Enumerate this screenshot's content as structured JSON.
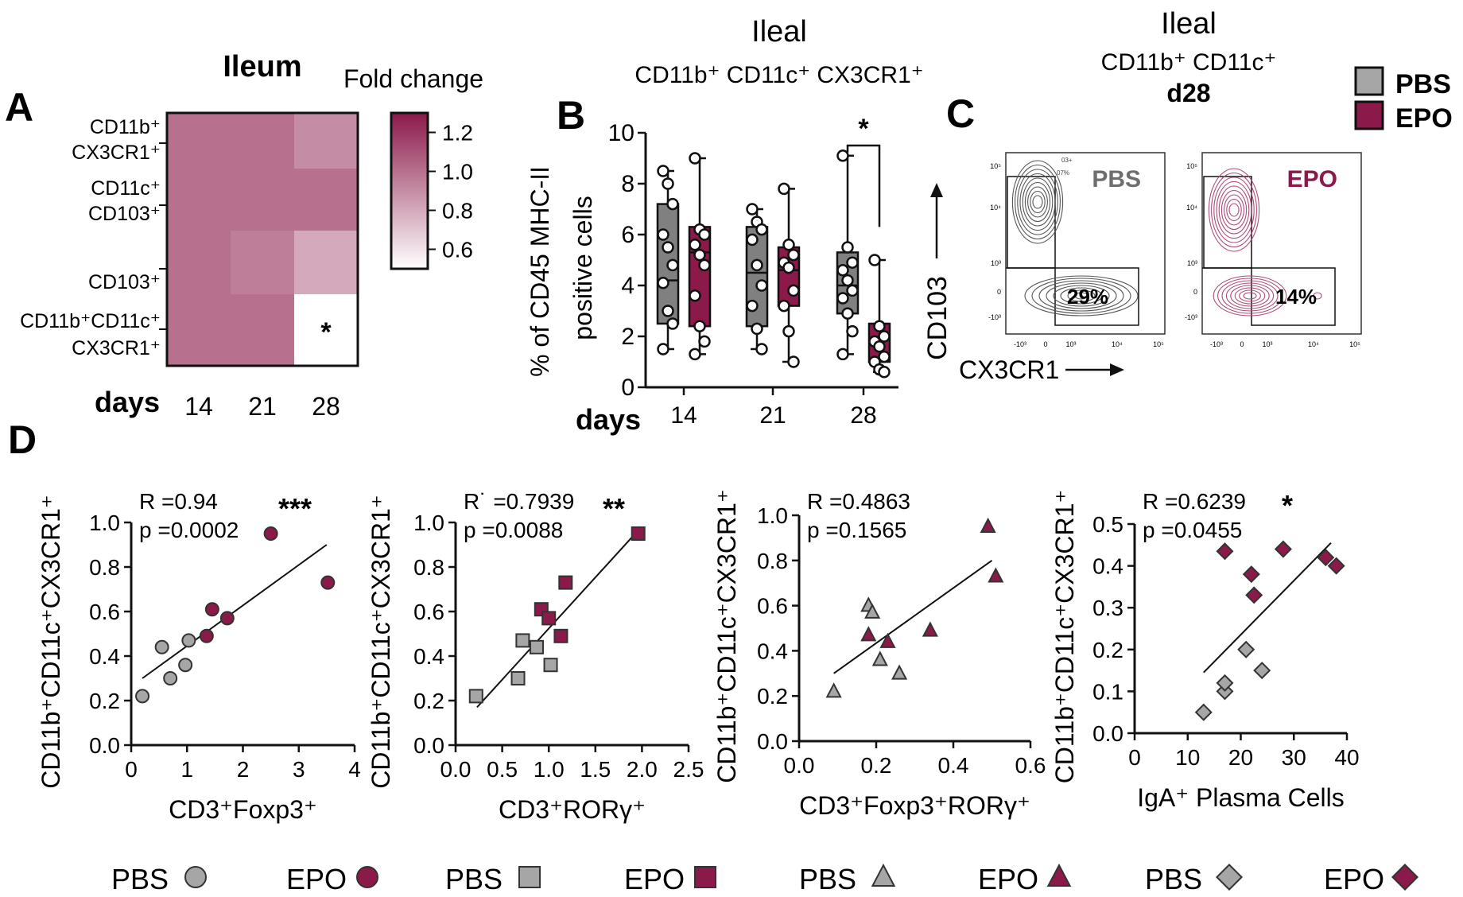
{
  "colors": {
    "pbs": "#a6a6a6",
    "epo": "#8b1a4a",
    "pbs_box": "#808080",
    "epo_box": "#8b1a4a",
    "heat_max": "#8b1a4a",
    "heat_min": "#ffffff",
    "flow_pbs": "#555555",
    "flow_epo": "#b04a7a",
    "axis": "#111111"
  },
  "legend_top": {
    "items": [
      {
        "label": "PBS",
        "color": "#a6a6a6"
      },
      {
        "label": "EPO",
        "color": "#8b1a4a"
      }
    ]
  },
  "panel_c": {
    "title_line1": "Ileal",
    "title_line2": "CD11b⁺ CD11c⁺",
    "title_line3": "d28",
    "y_label": "CD103",
    "x_label": "CX3CR1",
    "tick_labels": [
      "10⁵",
      "10⁴",
      "10³",
      "0",
      "-10³"
    ],
    "x_tick_labels": [
      "-10³",
      "0",
      "10³",
      "10⁴",
      "10⁵"
    ],
    "plots": [
      {
        "name": "PBS",
        "label_color": "#6e6e6e",
        "percent": "29%",
        "gate_text": "03+",
        "gate_text2": "07%"
      },
      {
        "name": "EPO",
        "label_color": "#8b1a4a",
        "percent": "14%"
      }
    ]
  },
  "panel_labels": {
    "a": "A",
    "b": "B",
    "c": "C",
    "d": "D"
  },
  "chart_data": [
    {
      "id": "A",
      "type": "heatmap",
      "title": "Ileum",
      "colorbar_title": "Fold change",
      "colorbar_ticks": [
        "1.2",
        "1.0",
        "0.8",
        "0.6"
      ],
      "colorbar_range": [
        0.5,
        1.3
      ],
      "rows": [
        "CD11b⁺ CX3CR1⁺",
        "CD11c⁺ CD103⁺",
        "CD103⁺",
        "CD11b⁺CD11c⁺ CX3CR1⁺"
      ],
      "columns": [
        "14",
        "21",
        "28"
      ],
      "xlabel": "days",
      "values": [
        [
          1.0,
          1.0,
          0.9
        ],
        [
          1.0,
          1.0,
          1.0
        ],
        [
          1.0,
          0.95,
          0.8
        ],
        [
          1.0,
          1.0,
          0.5
        ]
      ],
      "annotations": [
        {
          "row": 3,
          "col": 2,
          "text": "*"
        }
      ]
    },
    {
      "id": "B",
      "type": "box",
      "title": "Ileal",
      "subtitle": "CD11b⁺ CD11c⁺ CX3CR1⁺",
      "ylabel_line1": "% of CD45 MHC-II",
      "ylabel_line2": "positive cells",
      "xlabel": "days",
      "categories": [
        "14",
        "21",
        "28"
      ],
      "ylim": [
        0,
        10
      ],
      "yticks": [
        "0",
        "2",
        "4",
        "6",
        "8",
        "10"
      ],
      "significance": {
        "category": "28",
        "text": "*"
      },
      "series": [
        {
          "name": "PBS",
          "boxes": [
            {
              "min": 1.5,
              "q1": 2.5,
              "median": 4.2,
              "q3": 7.2,
              "max": 8.5,
              "points": [
                8.5,
                8.0,
                7.2,
                6.0,
                5.5,
                4.8,
                4.1,
                3.0,
                2.5,
                1.5
              ]
            },
            {
              "min": 1.5,
              "q1": 2.4,
              "median": 4.5,
              "q3": 6.3,
              "max": 7.0,
              "points": [
                7.0,
                6.5,
                6.2,
                5.8,
                4.8,
                4.0,
                3.2,
                2.3,
                1.5
              ]
            },
            {
              "min": 1.3,
              "q1": 2.9,
              "median": 4.0,
              "q3": 5.3,
              "max": 9.1,
              "points": [
                9.1,
                5.5,
                4.9,
                4.6,
                4.2,
                3.8,
                3.5,
                2.9,
                2.2,
                1.3
              ]
            }
          ]
        },
        {
          "name": "EPO",
          "boxes": [
            {
              "min": 1.3,
              "q1": 2.4,
              "median": 5.3,
              "q3": 6.3,
              "max": 9.0,
              "points": [
                9.0,
                6.2,
                6.0,
                5.6,
                5.2,
                4.8,
                3.6,
                2.4,
                1.8,
                1.3
              ]
            },
            {
              "min": 1.0,
              "q1": 3.2,
              "median": 4.6,
              "q3": 5.5,
              "max": 7.8,
              "points": [
                7.8,
                5.6,
                5.2,
                4.9,
                4.7,
                3.8,
                3.2,
                2.2,
                1.0
              ]
            },
            {
              "min": 0.6,
              "q1": 1.0,
              "median": 1.9,
              "q3": 2.5,
              "max": 5.0,
              "points": [
                5.0,
                2.4,
                2.0,
                1.8,
                1.6,
                1.2,
                1.0,
                0.7,
                0.6
              ]
            }
          ]
        }
      ]
    },
    {
      "id": "D1",
      "type": "scatter",
      "ylabel": "CD11b⁺CD11c⁺CX3CR1⁺",
      "xlabel": "CD3⁺Foxp3⁺",
      "stats": {
        "r_prefix": "R",
        "r": "=0.94",
        "p_prefix": "p",
        "p": "=0.0002",
        "sig": "***"
      },
      "marker": "circle",
      "xlim": [
        0,
        4
      ],
      "ylim": [
        0,
        1.0
      ],
      "xticks": [
        "0",
        "1",
        "2",
        "3",
        "4"
      ],
      "yticks": [
        "0.0",
        "0.2",
        "0.4",
        "0.6",
        "0.8",
        "1.0"
      ],
      "fit": [
        [
          0.2,
          0.3
        ],
        [
          3.5,
          0.9
        ]
      ],
      "series": [
        {
          "name": "PBS",
          "x": [
            0.2,
            0.55,
            0.7,
            0.97,
            1.03
          ],
          "y": [
            0.22,
            0.44,
            0.3,
            0.36,
            0.47
          ]
        },
        {
          "name": "EPO",
          "x": [
            1.35,
            1.45,
            1.72,
            2.5,
            3.52
          ],
          "y": [
            0.49,
            0.61,
            0.57,
            0.95,
            0.73
          ]
        }
      ]
    },
    {
      "id": "D2",
      "type": "scatter",
      "ylabel": "CD11b⁺CD11c⁺CX3CR1⁺",
      "xlabel": "CD3⁺RORγ⁺",
      "stats": {
        "r_prefix": "R˙",
        "r": "=0.7939",
        "p_prefix": "p",
        "p": "=0.0088",
        "sig": "**"
      },
      "marker": "square",
      "xlim": [
        0,
        2.5
      ],
      "ylim": [
        0,
        1.0
      ],
      "xticks": [
        "0.0",
        "0.5",
        "1.0",
        "1.5",
        "2.0",
        "2.5"
      ],
      "yticks": [
        "0.0",
        "0.2",
        "0.4",
        "0.6",
        "0.8",
        "1.0"
      ],
      "fit": [
        [
          0.23,
          0.17
        ],
        [
          1.95,
          0.96
        ]
      ],
      "series": [
        {
          "name": "PBS",
          "x": [
            0.22,
            0.67,
            0.72,
            0.87,
            1.02
          ],
          "y": [
            0.22,
            0.3,
            0.47,
            0.44,
            0.36
          ]
        },
        {
          "name": "EPO",
          "x": [
            0.92,
            1.0,
            1.13,
            1.18,
            1.96
          ],
          "y": [
            0.61,
            0.57,
            0.49,
            0.73,
            0.95
          ]
        }
      ]
    },
    {
      "id": "D3",
      "type": "scatter",
      "ylabel": "CD11b⁺CD11c⁺CX3CR1⁺",
      "xlabel": "CD3⁺Foxp3⁺RORγ⁺",
      "stats": {
        "r_prefix": "R",
        "r": "=0.4863",
        "p_prefix": "p",
        "p": "=0.1565",
        "sig": ""
      },
      "marker": "triangle",
      "xlim": [
        0,
        0.6
      ],
      "ylim": [
        0,
        1.0
      ],
      "xticks": [
        "0.0",
        "0.2",
        "0.4",
        "0.6"
      ],
      "yticks": [
        "0.0",
        "0.2",
        "0.4",
        "0.6",
        "0.8",
        "1.0"
      ],
      "fit": [
        [
          0.09,
          0.3
        ],
        [
          0.5,
          0.8
        ]
      ],
      "series": [
        {
          "name": "PBS",
          "x": [
            0.09,
            0.18,
            0.19,
            0.21,
            0.26
          ],
          "y": [
            0.22,
            0.6,
            0.57,
            0.36,
            0.3
          ]
        },
        {
          "name": "EPO",
          "x": [
            0.18,
            0.23,
            0.34,
            0.49,
            0.51
          ],
          "y": [
            0.47,
            0.44,
            0.49,
            0.95,
            0.73
          ]
        }
      ]
    },
    {
      "id": "D4",
      "type": "scatter",
      "ylabel": "CD11b⁺CD11c⁺CX3CR1⁺",
      "xlabel": "IgA⁺ Plasma Cells",
      "stats": {
        "r_prefix": "R",
        "r": "=0.6239",
        "p_prefix": "p",
        "p": "=0.0455",
        "sig": "*"
      },
      "marker": "diamond",
      "xlim": [
        0,
        40
      ],
      "ylim": [
        0,
        0.5
      ],
      "xticks": [
        "0",
        "10",
        "20",
        "30",
        "40"
      ],
      "yticks": [
        "0.0",
        "0.1",
        "0.2",
        "0.3",
        "0.4",
        "0.5"
      ],
      "fit": [
        [
          13,
          0.145
        ],
        [
          37,
          0.455
        ]
      ],
      "series": [
        {
          "name": "PBS",
          "x": [
            13,
            17,
            17,
            21,
            24
          ],
          "y": [
            0.05,
            0.1,
            0.12,
            0.2,
            0.15
          ]
        },
        {
          "name": "EPO",
          "x": [
            17,
            22,
            22.5,
            28,
            36,
            38
          ],
          "y": [
            0.435,
            0.38,
            0.33,
            0.44,
            0.42,
            0.4
          ]
        }
      ]
    }
  ],
  "bottom_legend": [
    {
      "label": "PBS",
      "marker": "circle",
      "group": "PBS"
    },
    {
      "label": "EPO",
      "marker": "circle",
      "group": "EPO"
    },
    {
      "label": "PBS",
      "marker": "square",
      "group": "PBS"
    },
    {
      "label": "EPO",
      "marker": "square",
      "group": "EPO"
    },
    {
      "label": "PBS",
      "marker": "triangle",
      "group": "PBS"
    },
    {
      "label": "EPO",
      "marker": "triangle",
      "group": "EPO"
    },
    {
      "label": "PBS",
      "marker": "diamond",
      "group": "PBS"
    },
    {
      "label": "EPO",
      "marker": "diamond",
      "group": "EPO"
    }
  ]
}
